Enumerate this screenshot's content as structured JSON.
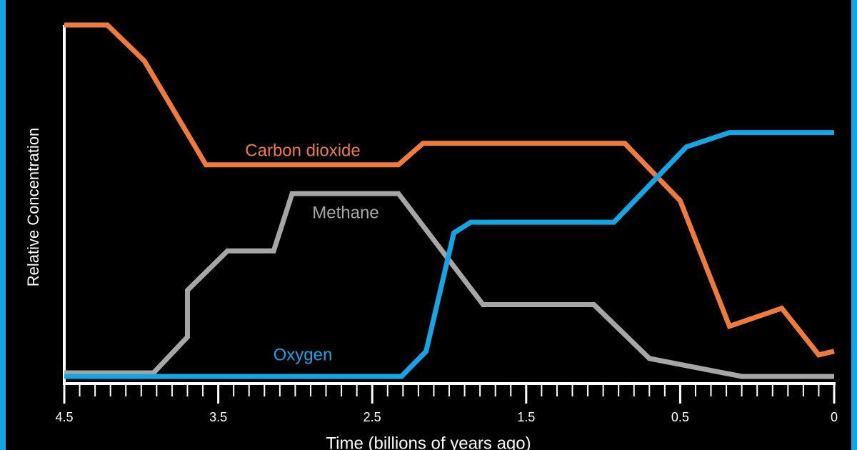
{
  "chart_data": {
    "type": "line",
    "x_label": "Time (billions of years ago)",
    "y_label": "Relative Concentration",
    "xlim": [
      4.5,
      0
    ],
    "xticks": [
      4.5,
      3.5,
      2.5,
      1.5,
      0.5,
      0
    ],
    "ylim": [
      0,
      1
    ],
    "grid": false,
    "series": [
      {
        "name": "Carbon dioxide",
        "color": "#f07a3c",
        "x": [
          4.5,
          4.22,
          3.98,
          3.58,
          2.33,
          2.17,
          0.86,
          0.5,
          0.34,
          0.17,
          0.05,
          0
        ],
        "values": [
          1.0,
          1.0,
          0.9,
          0.61,
          0.61,
          0.67,
          0.67,
          0.51,
          0.16,
          0.21,
          0.08,
          0.09
        ]
      },
      {
        "name": "Methane",
        "color": "#a6a6a6",
        "x": [
          4.5,
          3.92,
          3.7,
          3.7,
          3.44,
          3.14,
          3.02,
          2.33,
          1.78,
          1.06,
          0.7,
          0.3,
          0
        ],
        "values": [
          0.03,
          0.03,
          0.13,
          0.26,
          0.37,
          0.37,
          0.53,
          0.53,
          0.22,
          0.22,
          0.07,
          0.02,
          0.02
        ]
      },
      {
        "name": "Oxygen",
        "color": "#14a5e6",
        "x": [
          4.5,
          2.31,
          2.15,
          1.97,
          1.86,
          0.93,
          0.48,
          0.34,
          0
        ],
        "values": [
          0.02,
          0.02,
          0.09,
          0.42,
          0.45,
          0.45,
          0.66,
          0.7,
          0.7
        ]
      }
    ]
  }
}
